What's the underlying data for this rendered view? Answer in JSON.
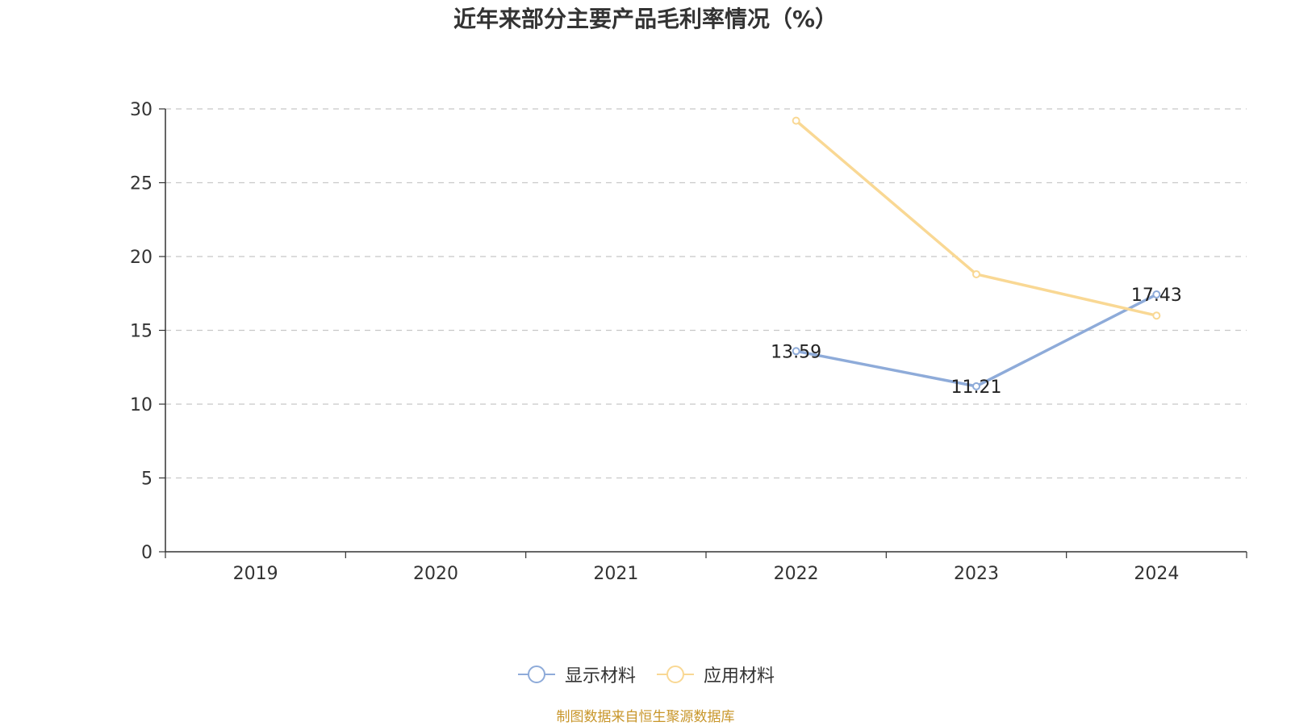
{
  "chart_data": {
    "type": "line",
    "title": "近年来部分主要产品毛利率情况（%）",
    "categories": [
      "2019",
      "2020",
      "2021",
      "2022",
      "2023",
      "2024"
    ],
    "ylim": [
      0,
      30
    ],
    "yticks": [
      "0",
      "5",
      "10",
      "15",
      "20",
      "25",
      "30"
    ],
    "grid": true,
    "legend_position": "bottom",
    "series": [
      {
        "name": "显示材料",
        "color": "#8eabd9",
        "values": [
          null,
          null,
          null,
          13.59,
          11.21,
          17.43
        ],
        "labels": [
          "",
          "",
          "",
          "13.59",
          "11.21",
          "17.43"
        ]
      },
      {
        "name": "应用材料",
        "color": "#f9d894",
        "values": [
          null,
          null,
          null,
          29.2,
          18.8,
          16.0
        ],
        "labels": [
          "",
          "",
          "",
          "",
          "",
          ""
        ]
      }
    ]
  },
  "source_note": "制图数据来自恒生聚源数据库"
}
